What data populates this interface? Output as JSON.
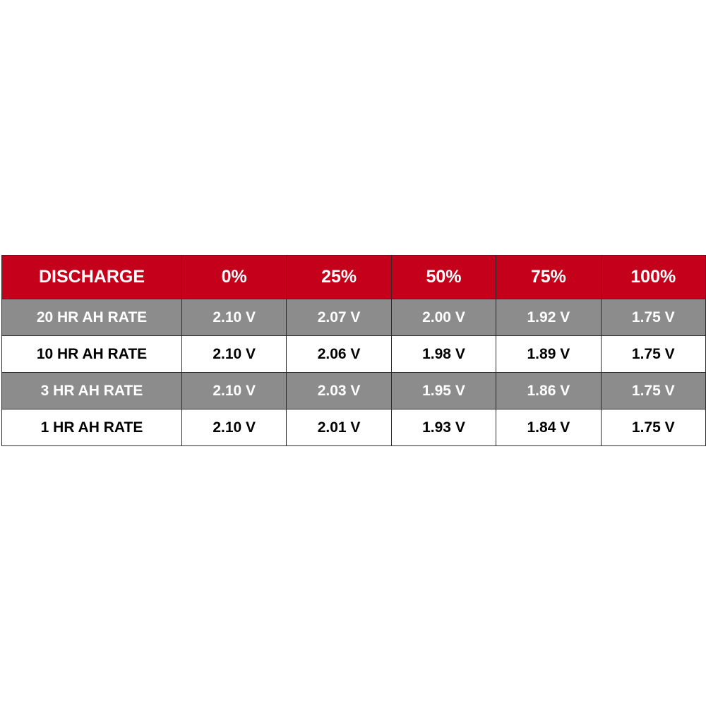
{
  "colors": {
    "header_bg": "#c4001a",
    "header_text": "#ffffff",
    "gray_row_bg": "#8c8c8c",
    "gray_row_text": "#ffffff",
    "white_row_bg": "#ffffff",
    "white_row_text": "#000000"
  },
  "table": {
    "headers": [
      "DISCHARGE",
      "0%",
      "25%",
      "50%",
      "75%",
      "100%"
    ],
    "rows": [
      {
        "label": "20 HR AH RATE",
        "values": [
          "2.10 V",
          "2.07 V",
          "2.00 V",
          "1.92 V",
          "1.75 V"
        ]
      },
      {
        "label": "10 HR AH RATE",
        "values": [
          "2.10 V",
          "2.06 V",
          "1.98 V",
          "1.89 V",
          "1.75 V"
        ]
      },
      {
        "label": "3 HR AH RATE",
        "values": [
          "2.10 V",
          "2.03 V",
          "1.95 V",
          "1.86 V",
          "1.75 V"
        ]
      },
      {
        "label": "1 HR AH RATE",
        "values": [
          "2.10 V",
          "2.01 V",
          "1.93 V",
          "1.84 V",
          "1.75 V"
        ]
      }
    ]
  }
}
